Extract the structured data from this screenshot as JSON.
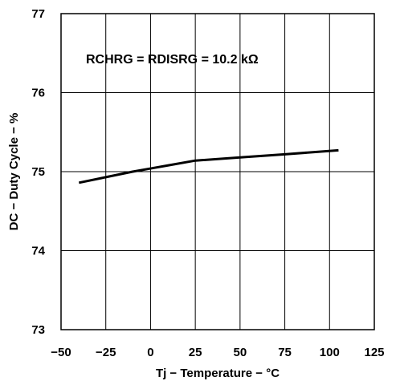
{
  "chart_data": {
    "type": "line",
    "title": "",
    "xlabel": "Tj − Temperature − °C",
    "ylabel": "DC − Duty Cycle − %",
    "xlim": [
      -50,
      125
    ],
    "ylim": [
      73,
      77
    ],
    "x_ticks": [
      -50,
      -25,
      0,
      25,
      50,
      75,
      100,
      125
    ],
    "y_ticks": [
      73,
      74,
      75,
      76,
      77
    ],
    "x_tick_labels": [
      "−50",
      "−25",
      "0",
      "25",
      "50",
      "75",
      "100",
      "125"
    ],
    "y_tick_labels": [
      "73",
      "74",
      "75",
      "76",
      "77"
    ],
    "grid": true,
    "annotation": "RCHRG = RDISRG = 10.2 kΩ",
    "series": [
      {
        "x": [
          -40,
          -25,
          -10,
          0,
          10,
          25,
          50,
          75,
          105
        ],
        "y": [
          74.86,
          74.93,
          75.0,
          75.04,
          75.08,
          75.14,
          75.18,
          75.22,
          75.27
        ]
      }
    ]
  }
}
